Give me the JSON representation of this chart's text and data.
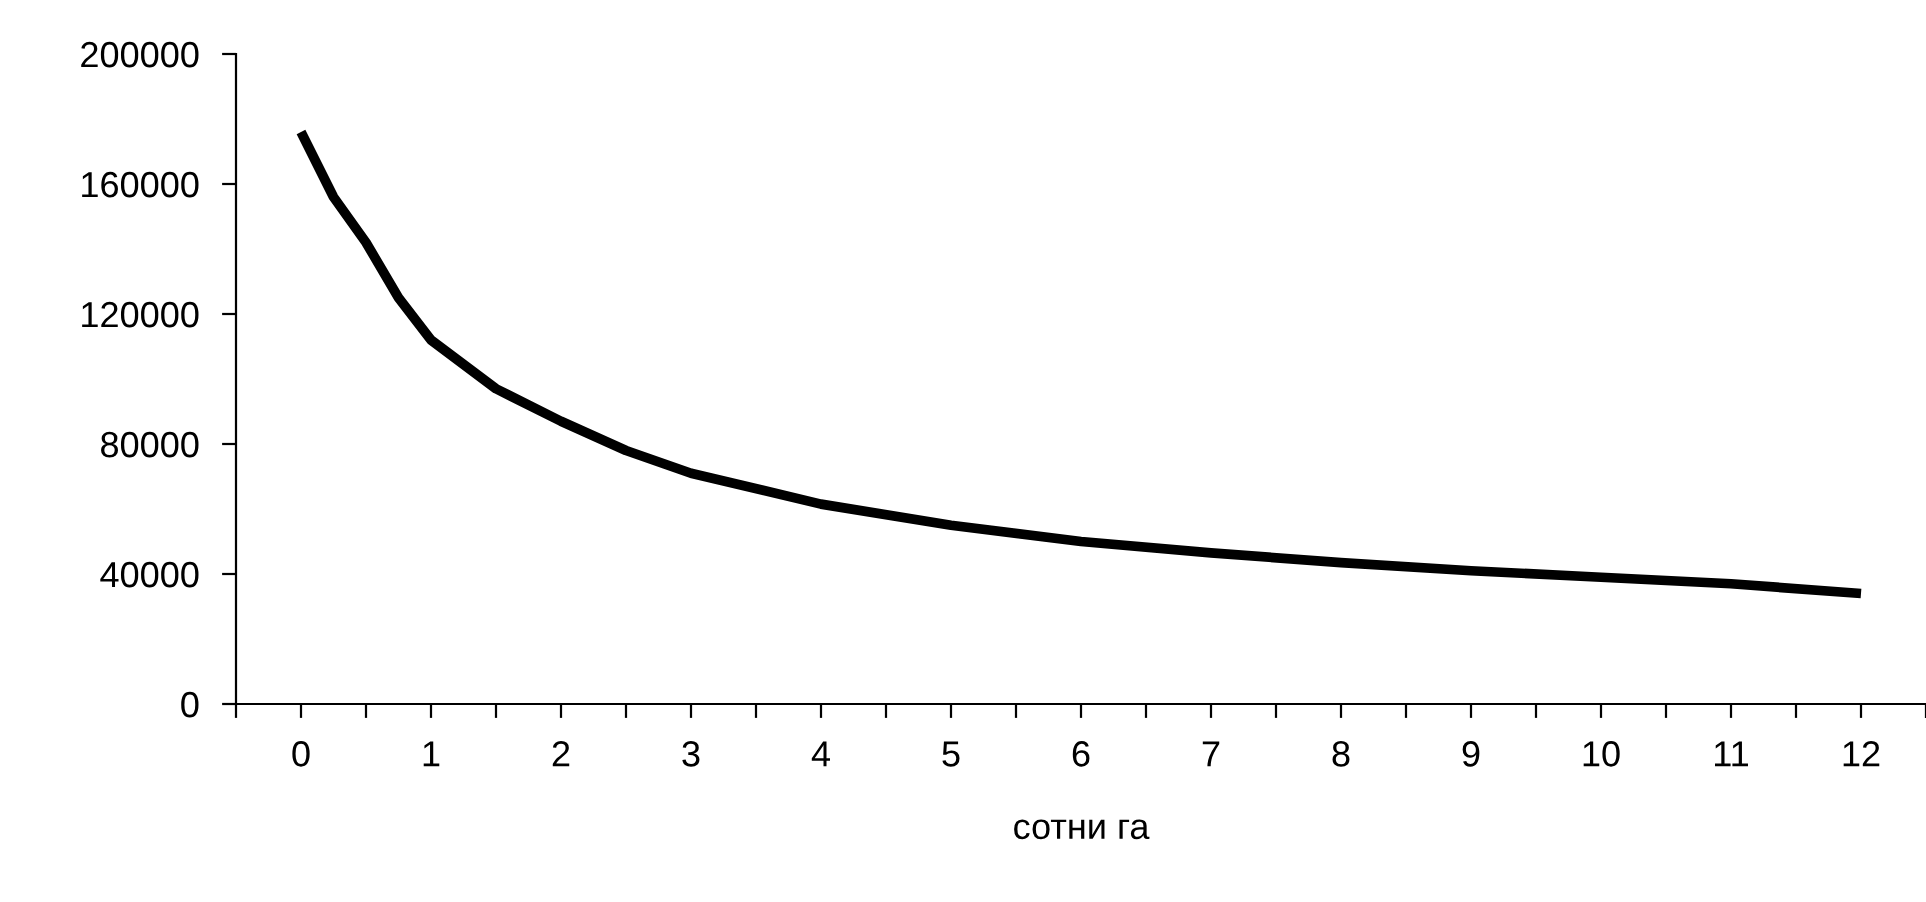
{
  "chart_data": {
    "type": "line",
    "xlabel": "сотни га",
    "series": [
      {
        "color": "#000000",
        "x": [
          0,
          0.25,
          0.5,
          0.75,
          1,
          1.5,
          2,
          2.5,
          3,
          4,
          5,
          6,
          7,
          8,
          9,
          10,
          11,
          12
        ],
        "values": [
          176000,
          156000,
          142000,
          125000,
          112000,
          97000,
          87000,
          78000,
          71000,
          61500,
          55000,
          50000,
          46500,
          43500,
          41000,
          39000,
          37000,
          34000
        ]
      }
    ],
    "xlim": [
      -0.5,
      12.5
    ],
    "xticks": [
      {
        "value": -0.5,
        "label": null
      },
      {
        "value": 0,
        "label": "0"
      },
      {
        "value": 0.5,
        "label": null
      },
      {
        "value": 1,
        "label": "1"
      },
      {
        "value": 1.5,
        "label": null
      },
      {
        "value": 2,
        "label": "2"
      },
      {
        "value": 2.5,
        "label": null
      },
      {
        "value": 3,
        "label": "3"
      },
      {
        "value": 3.5,
        "label": null
      },
      {
        "value": 4,
        "label": "4"
      },
      {
        "value": 4.5,
        "label": null
      },
      {
        "value": 5,
        "label": "5"
      },
      {
        "value": 5.5,
        "label": null
      },
      {
        "value": 6,
        "label": "6"
      },
      {
        "value": 6.5,
        "label": null
      },
      {
        "value": 7,
        "label": "7"
      },
      {
        "value": 7.5,
        "label": null
      },
      {
        "value": 8,
        "label": "8"
      },
      {
        "value": 8.5,
        "label": null
      },
      {
        "value": 9,
        "label": "9"
      },
      {
        "value": 9.5,
        "label": null
      },
      {
        "value": 10,
        "label": "10"
      },
      {
        "value": 10.5,
        "label": null
      },
      {
        "value": 11,
        "label": "11"
      },
      {
        "value": 11.5,
        "label": null
      },
      {
        "value": 12,
        "label": "12"
      },
      {
        "value": 12.5,
        "label": null
      }
    ],
    "ylim": [
      0,
      200000
    ],
    "yticks": [
      0,
      40000,
      80000,
      120000,
      160000,
      200000
    ],
    "grid": false,
    "legend": false,
    "marker": "none",
    "line_style": "solid"
  }
}
